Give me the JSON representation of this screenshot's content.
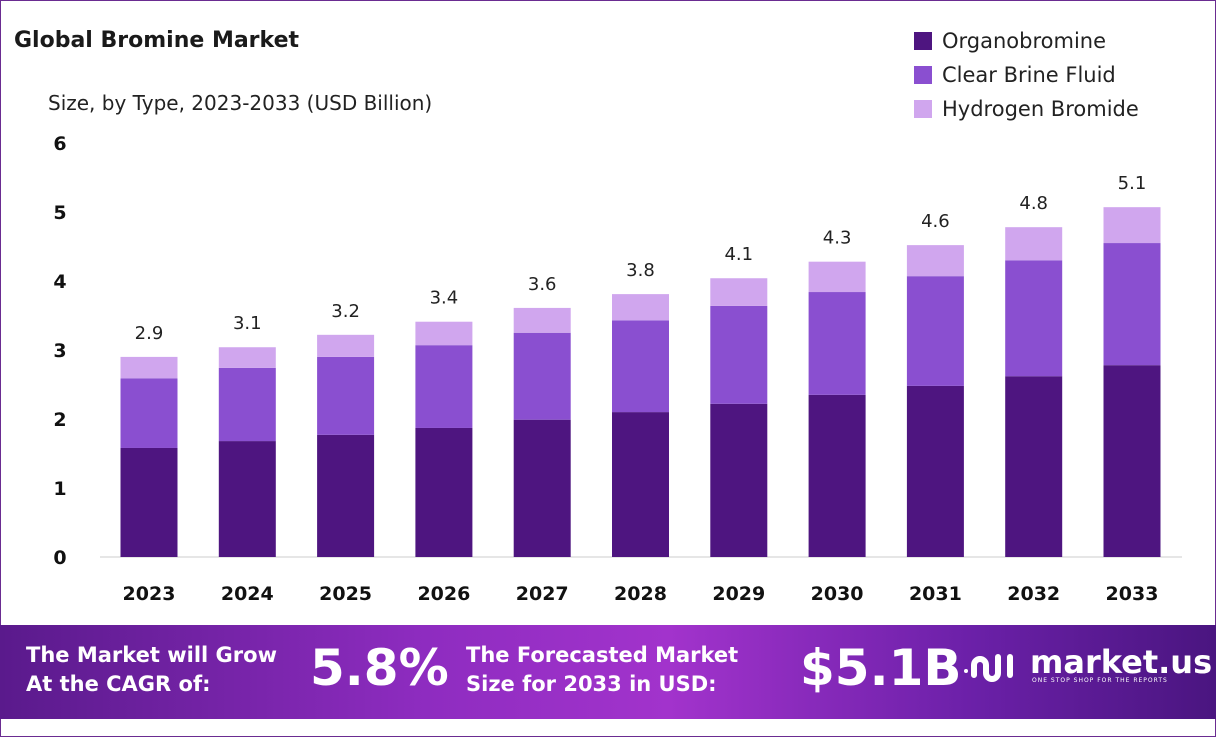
{
  "chart_data": {
    "type": "bar",
    "stacked": true,
    "title": "Global Bromine Market",
    "subtitle": "Size, by Type, 2023-2033 (USD Billion)",
    "categories": [
      "2023",
      "2024",
      "2025",
      "2026",
      "2027",
      "2028",
      "2029",
      "2030",
      "2031",
      "2032",
      "2033"
    ],
    "series": [
      {
        "name": "Organobromine",
        "color": "#4e1580",
        "values": [
          1.58,
          1.68,
          1.77,
          1.87,
          1.99,
          2.1,
          2.22,
          2.35,
          2.48,
          2.62,
          2.78
        ]
      },
      {
        "name": "Clear Brine Fluid",
        "color": "#8a4fd0",
        "values": [
          1.01,
          1.06,
          1.13,
          1.2,
          1.26,
          1.33,
          1.42,
          1.49,
          1.59,
          1.68,
          1.77
        ]
      },
      {
        "name": "Hydrogen Bromide",
        "color": "#d0a6ee",
        "values": [
          0.31,
          0.3,
          0.32,
          0.34,
          0.36,
          0.38,
          0.4,
          0.44,
          0.45,
          0.48,
          0.52
        ]
      }
    ],
    "totals": [
      "2.9",
      "3.1",
      "3.2",
      "3.4",
      "3.6",
      "3.8",
      "4.1",
      "4.3",
      "4.6",
      "4.8",
      "5.1"
    ],
    "yticks": [
      "0",
      "1",
      "2",
      "3",
      "4",
      "5",
      "6"
    ],
    "ylim": [
      0,
      6
    ],
    "grid": false,
    "legend": "top-right"
  },
  "banner": {
    "cagr_label_line1": "The Market will Grow",
    "cagr_label_line2": "At the CAGR of:",
    "cagr_value": "5.8%",
    "forecast_label_line1": "The Forecasted Market",
    "forecast_label_line2": "Size for 2033 in USD:",
    "forecast_value": "$5.1B",
    "logo_text": "market.us",
    "logo_tagline": "ONE STOP SHOP FOR THE REPORTS"
  }
}
